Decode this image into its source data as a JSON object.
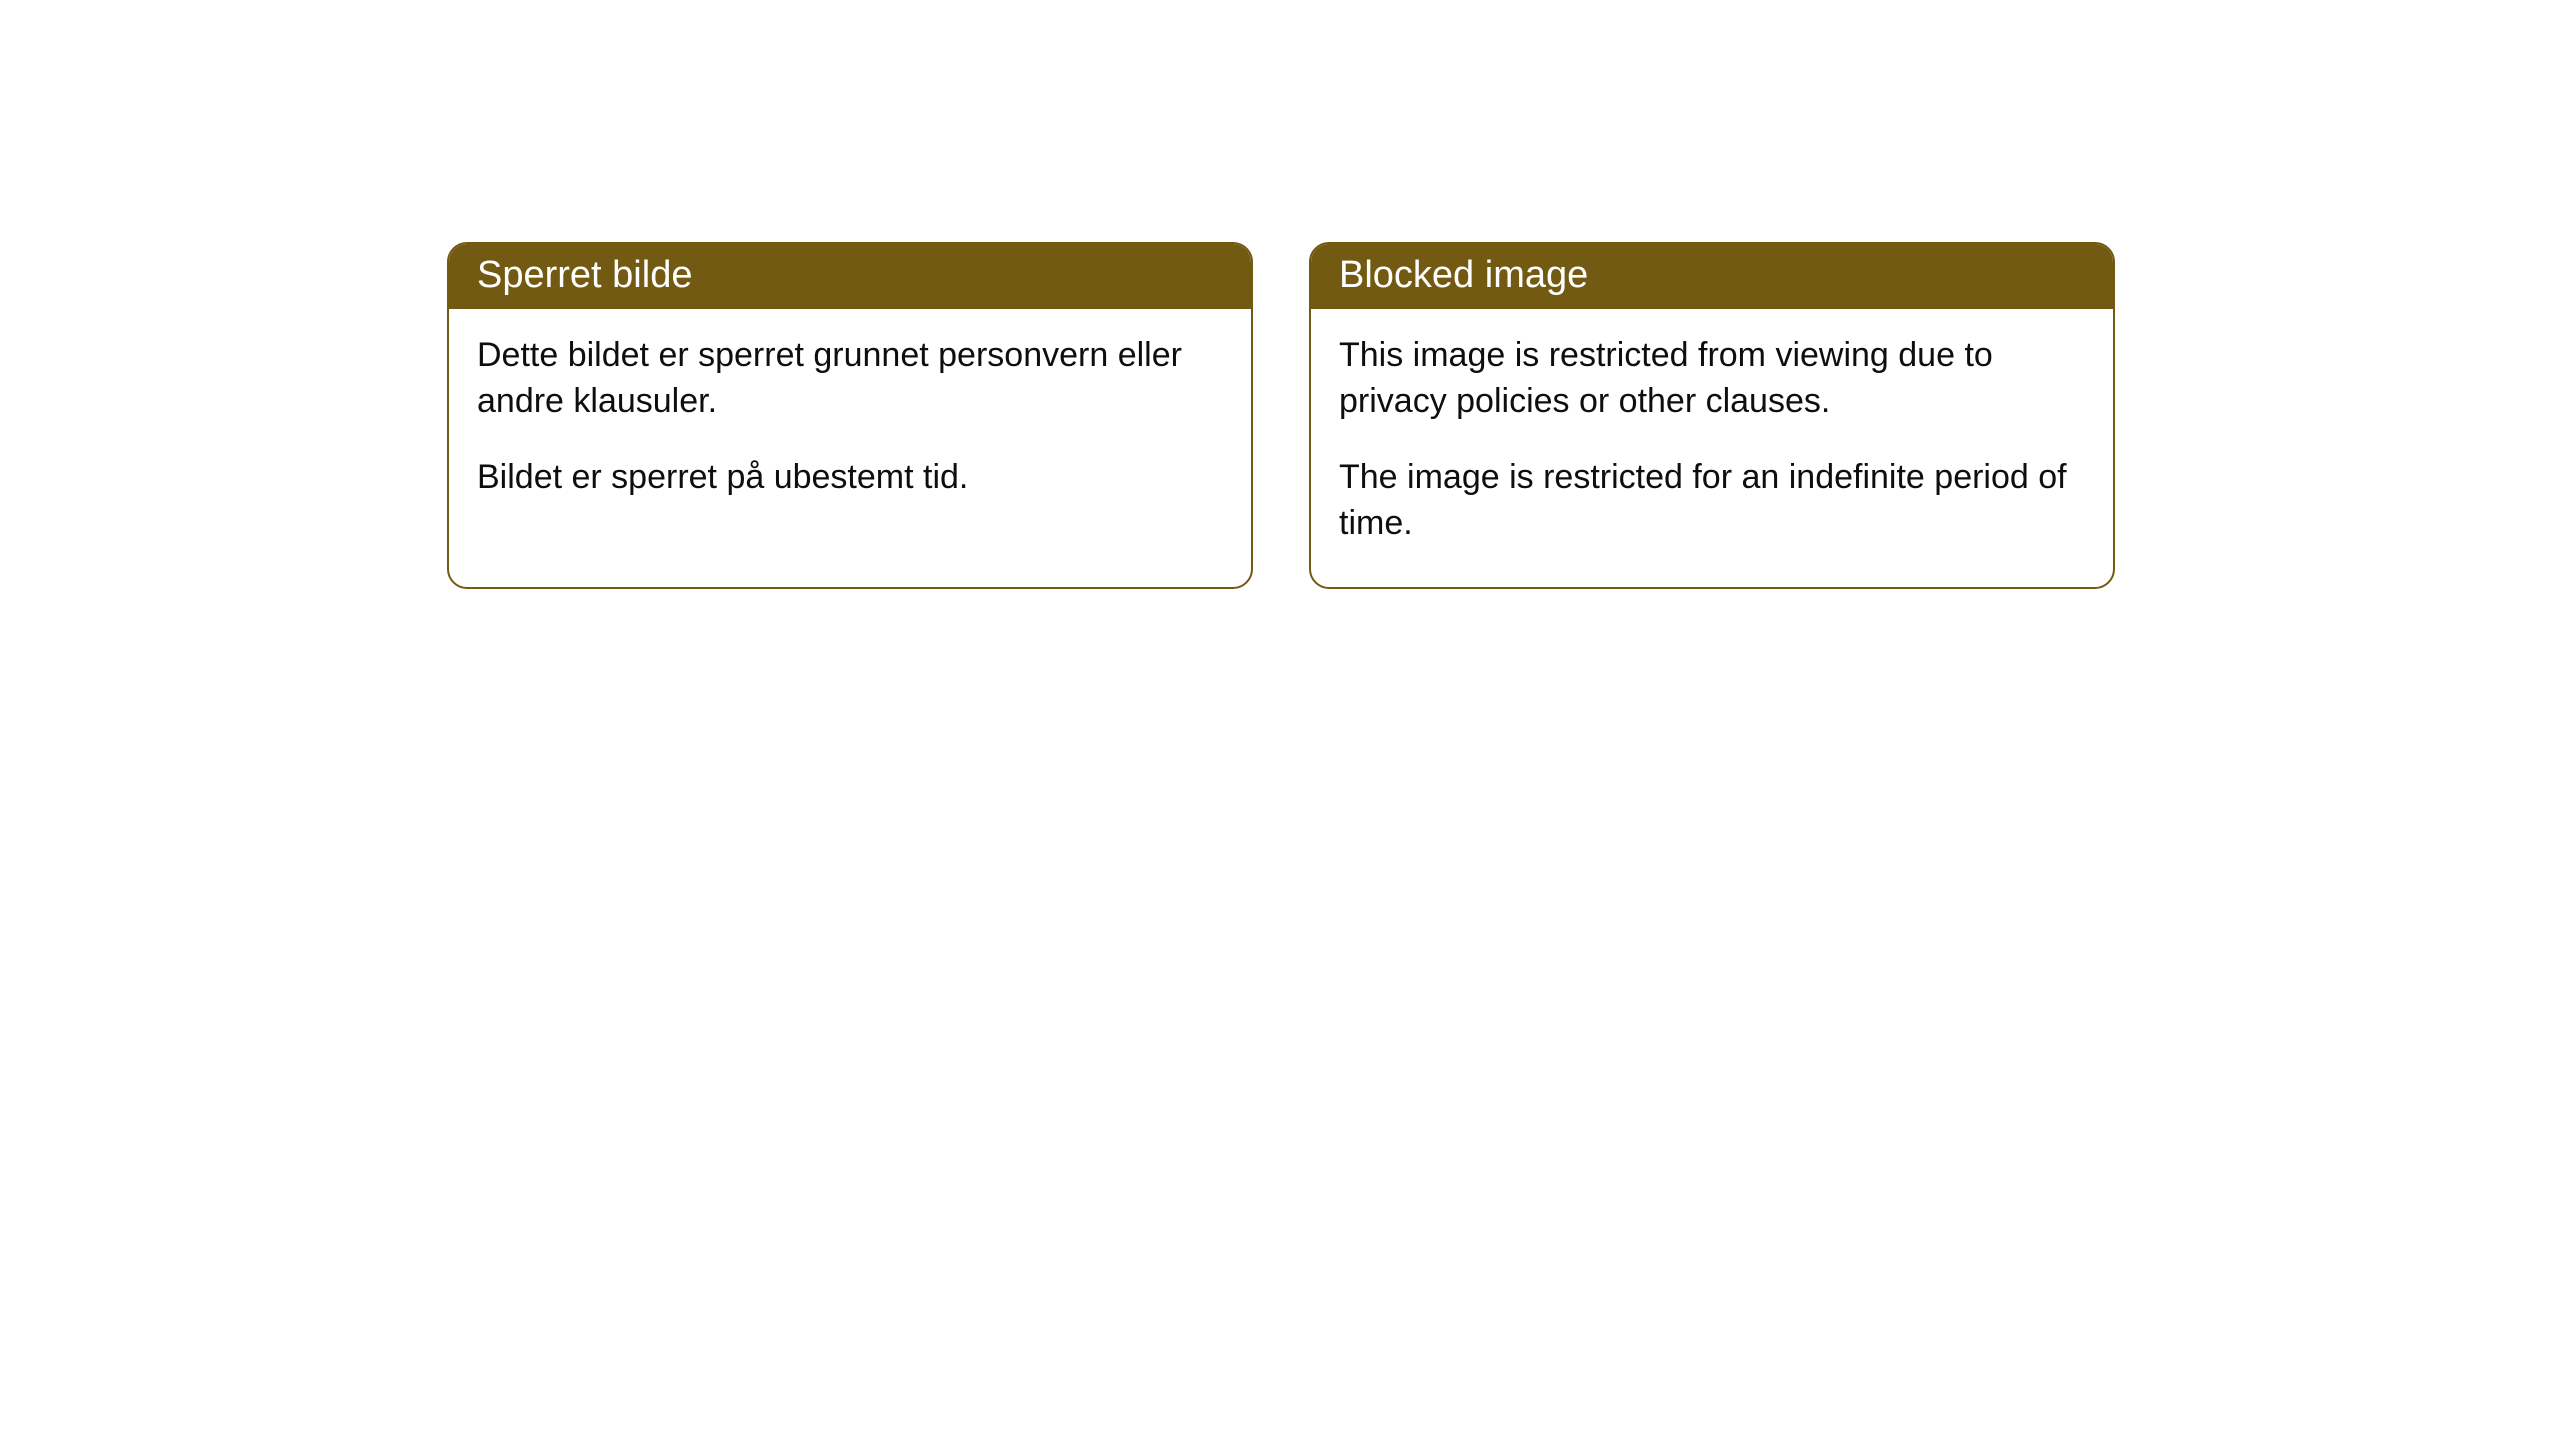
{
  "cards": [
    {
      "title": "Sperret bilde",
      "paragraph1": "Dette bildet er sperret grunnet personvern eller andre klausuler.",
      "paragraph2": "Bildet er sperret på ubestemt tid."
    },
    {
      "title": "Blocked image",
      "paragraph1": "This image is restricted from viewing due to privacy policies or other clauses.",
      "paragraph2": "The image is restricted for an indefinite period of time."
    }
  ],
  "colors": {
    "header_bg": "#735a13",
    "header_text": "#ffffff",
    "border": "#735a13",
    "body_text": "#0e0e0e",
    "page_bg": "#ffffff"
  }
}
